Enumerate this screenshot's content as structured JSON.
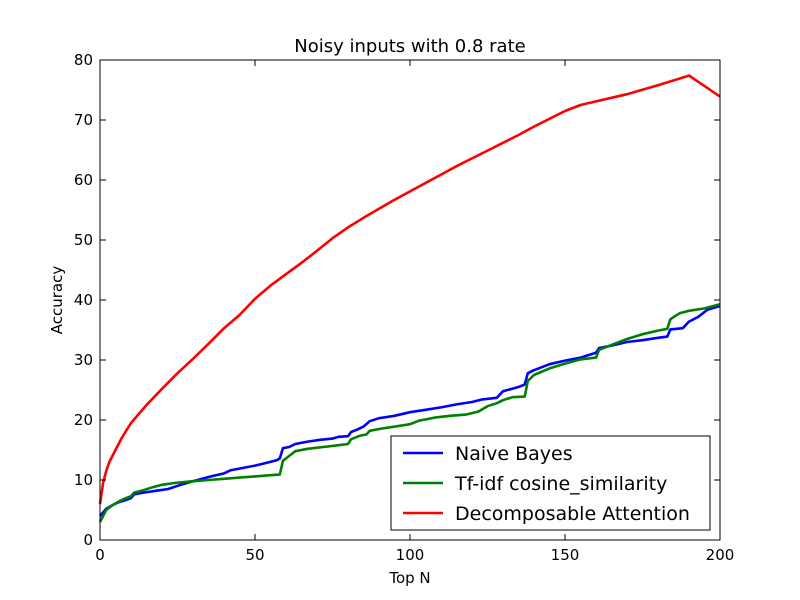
{
  "chart_data": {
    "type": "line",
    "title": "Noisy inputs with 0.8 rate",
    "xlabel": "Top N",
    "ylabel": "Accuracy",
    "xlim": [
      0,
      200
    ],
    "ylim": [
      0,
      80
    ],
    "x_ticks": [
      0,
      50,
      100,
      150,
      200
    ],
    "y_ticks": [
      0,
      10,
      20,
      30,
      40,
      50,
      60,
      70,
      80
    ],
    "grid": false,
    "legend_position": "lower-right",
    "series": [
      {
        "name": "Naive Bayes",
        "color": "#0000ff",
        "points": [
          [
            0,
            4
          ],
          [
            2,
            5.2
          ],
          [
            4,
            5.8
          ],
          [
            6,
            6.3
          ],
          [
            8,
            6.6
          ],
          [
            10,
            7
          ],
          [
            11,
            7.6
          ],
          [
            14,
            7.9
          ],
          [
            18,
            8.2
          ],
          [
            22,
            8.5
          ],
          [
            26,
            9.2
          ],
          [
            30,
            9.8
          ],
          [
            35,
            10.5
          ],
          [
            40,
            11.1
          ],
          [
            42,
            11.6
          ],
          [
            46,
            12
          ],
          [
            50,
            12.4
          ],
          [
            54,
            12.9
          ],
          [
            57,
            13.3
          ],
          [
            58,
            13.6
          ],
          [
            59,
            15.3
          ],
          [
            61,
            15.5
          ],
          [
            63,
            16
          ],
          [
            67,
            16.4
          ],
          [
            71,
            16.7
          ],
          [
            75,
            16.9
          ],
          [
            77,
            17.2
          ],
          [
            80,
            17.3
          ],
          [
            81,
            18
          ],
          [
            83,
            18.4
          ],
          [
            85,
            18.9
          ],
          [
            87,
            19.8
          ],
          [
            90,
            20.3
          ],
          [
            95,
            20.7
          ],
          [
            100,
            21.3
          ],
          [
            105,
            21.7
          ],
          [
            110,
            22.1
          ],
          [
            115,
            22.6
          ],
          [
            120,
            23
          ],
          [
            123,
            23.4
          ],
          [
            128,
            23.7
          ],
          [
            130,
            24.8
          ],
          [
            135,
            25.5
          ],
          [
            137,
            25.9
          ],
          [
            138,
            27.8
          ],
          [
            140,
            28.3
          ],
          [
            145,
            29.3
          ],
          [
            150,
            29.9
          ],
          [
            155,
            30.4
          ],
          [
            160,
            31.2
          ],
          [
            161,
            32
          ],
          [
            165,
            32.4
          ],
          [
            170,
            33
          ],
          [
            175,
            33.3
          ],
          [
            180,
            33.7
          ],
          [
            183,
            33.9
          ],
          [
            184,
            35.1
          ],
          [
            188,
            35.3
          ],
          [
            190,
            36.4
          ],
          [
            193,
            37.2
          ],
          [
            196,
            38.4
          ],
          [
            200,
            39
          ]
        ]
      },
      {
        "name": "Tf-idf cosine_similarity",
        "color": "#008000",
        "points": [
          [
            0,
            3
          ],
          [
            2,
            5
          ],
          [
            4,
            5.8
          ],
          [
            6,
            6.4
          ],
          [
            8,
            6.9
          ],
          [
            10,
            7.3
          ],
          [
            11,
            7.9
          ],
          [
            14,
            8.3
          ],
          [
            17,
            8.8
          ],
          [
            20,
            9.2
          ],
          [
            24,
            9.5
          ],
          [
            30,
            9.8
          ],
          [
            35,
            10
          ],
          [
            40,
            10.2
          ],
          [
            45,
            10.4
          ],
          [
            50,
            10.6
          ],
          [
            55,
            10.8
          ],
          [
            58,
            10.9
          ],
          [
            59,
            13.2
          ],
          [
            61,
            14
          ],
          [
            63,
            14.8
          ],
          [
            67,
            15.2
          ],
          [
            72,
            15.5
          ],
          [
            77,
            15.8
          ],
          [
            80,
            16
          ],
          [
            81,
            16.8
          ],
          [
            84,
            17.4
          ],
          [
            86,
            17.6
          ],
          [
            87,
            18.2
          ],
          [
            90,
            18.5
          ],
          [
            95,
            18.9
          ],
          [
            100,
            19.3
          ],
          [
            103,
            19.9
          ],
          [
            108,
            20.4
          ],
          [
            113,
            20.7
          ],
          [
            118,
            20.9
          ],
          [
            122,
            21.4
          ],
          [
            125,
            22.3
          ],
          [
            128,
            22.8
          ],
          [
            130,
            23.3
          ],
          [
            133,
            23.8
          ],
          [
            137,
            23.9
          ],
          [
            138,
            26.5
          ],
          [
            140,
            27.5
          ],
          [
            145,
            28.6
          ],
          [
            150,
            29.4
          ],
          [
            155,
            30.1
          ],
          [
            160,
            30.4
          ],
          [
            161,
            31.7
          ],
          [
            165,
            32.5
          ],
          [
            170,
            33.5
          ],
          [
            175,
            34.3
          ],
          [
            180,
            34.9
          ],
          [
            183,
            35.2
          ],
          [
            184,
            36.8
          ],
          [
            187,
            37.8
          ],
          [
            190,
            38.2
          ],
          [
            195,
            38.6
          ],
          [
            200,
            39.3
          ]
        ]
      },
      {
        "name": "Decomposable Attention",
        "color": "#ff0000",
        "points": [
          [
            0,
            6
          ],
          [
            1,
            9.5
          ],
          [
            2,
            11.5
          ],
          [
            3,
            13
          ],
          [
            5,
            15
          ],
          [
            7,
            17
          ],
          [
            10,
            19.5
          ],
          [
            15,
            22.5
          ],
          [
            20,
            25.2
          ],
          [
            25,
            27.8
          ],
          [
            30,
            30.2
          ],
          [
            35,
            32.7
          ],
          [
            40,
            35.3
          ],
          [
            45,
            37.5
          ],
          [
            50,
            40.2
          ],
          [
            55,
            42.4
          ],
          [
            60,
            44.3
          ],
          [
            65,
            46.2
          ],
          [
            70,
            48.2
          ],
          [
            75,
            50.3
          ],
          [
            80,
            52.1
          ],
          [
            85,
            53.7
          ],
          [
            90,
            55.2
          ],
          [
            95,
            56.7
          ],
          [
            100,
            58.1
          ],
          [
            105,
            59.5
          ],
          [
            110,
            60.9
          ],
          [
            115,
            62.3
          ],
          [
            120,
            63.6
          ],
          [
            125,
            64.9
          ],
          [
            130,
            66.2
          ],
          [
            135,
            67.5
          ],
          [
            140,
            68.9
          ],
          [
            145,
            70.2
          ],
          [
            150,
            71.5
          ],
          [
            155,
            72.5
          ],
          [
            160,
            73.1
          ],
          [
            170,
            74.3
          ],
          [
            180,
            75.8
          ],
          [
            190,
            77.4
          ],
          [
            200,
            73.9
          ]
        ]
      }
    ]
  }
}
